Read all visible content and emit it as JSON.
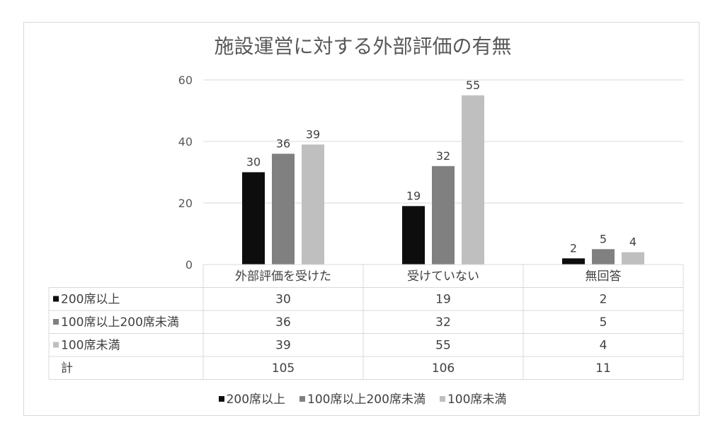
{
  "chart_data": {
    "type": "bar",
    "title": "施設運営に対する外部評価の有無",
    "categories": [
      "外部評価を受けた",
      "受けていない",
      "無回答"
    ],
    "series": [
      {
        "name": "200席以上",
        "values": [
          30,
          19,
          2
        ],
        "color": "#0d0d0d"
      },
      {
        "name": "100席以上200席未満",
        "values": [
          36,
          32,
          5
        ],
        "color": "#808080"
      },
      {
        "name": "100席未満",
        "values": [
          39,
          55,
          4
        ],
        "color": "#bfbfbf"
      }
    ],
    "yticks": [
      "0",
      "20",
      "40",
      "60"
    ],
    "ylim": [
      0,
      60
    ],
    "grid": true,
    "legend": "bottom",
    "table": {
      "total_label": "計",
      "totals": [
        105,
        106,
        11
      ]
    }
  }
}
